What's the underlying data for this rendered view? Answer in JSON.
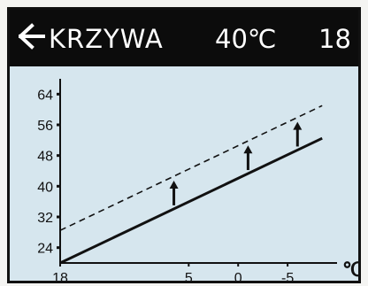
{
  "header": {
    "back_icon": "left-arrow-icon",
    "title": "KRZYWA",
    "temperature": "40℃",
    "value": "18"
  },
  "colors": {
    "screen_background": "#d6e6ee",
    "header_background": "#0c0c0c",
    "header_text": "#ffffff",
    "line": "#111111"
  },
  "chart_data": {
    "type": "line",
    "xlabel": "℃",
    "ylabel": "",
    "x_ticks": [
      "18",
      "5",
      "0",
      "-5"
    ],
    "y_ticks": [
      64,
      56,
      48,
      40,
      32,
      24
    ],
    "ylim": [
      20,
      68
    ],
    "series": [
      {
        "style": "solid",
        "x": [
          18,
          -8.5
        ],
        "y": [
          20,
          52.5
        ]
      },
      {
        "style": "dashed",
        "x": [
          18,
          -8.5
        ],
        "y": [
          28.5,
          61
        ]
      }
    ],
    "shift_arrows_at_x": [
      6.5,
      -1,
      -6
    ]
  }
}
